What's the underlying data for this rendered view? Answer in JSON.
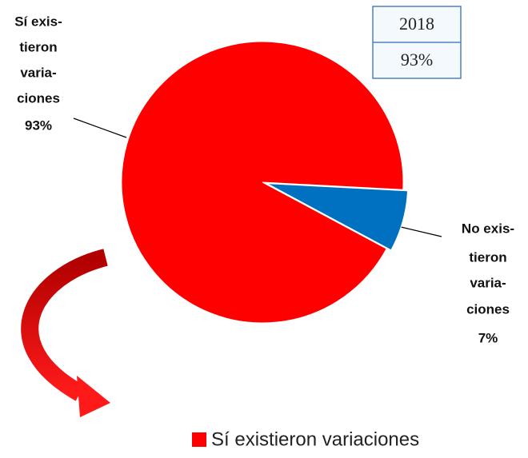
{
  "chart_data": {
    "type": "pie",
    "categories": [
      "Sí existieron variaciones",
      "No existieron variaciones"
    ],
    "label_lines": [
      [
        "Sí exis-",
        "tieron",
        "varia-",
        "ciones"
      ],
      [
        "No exis-",
        "tieron",
        "varia-",
        "ciones"
      ]
    ],
    "values": [
      93,
      7
    ],
    "value_labels": [
      "93%",
      "7%"
    ],
    "colors": [
      "#ff0000",
      "#0070c0"
    ]
  },
  "table": {
    "rows": [
      [
        "2018"
      ],
      [
        "93%"
      ]
    ]
  }
}
